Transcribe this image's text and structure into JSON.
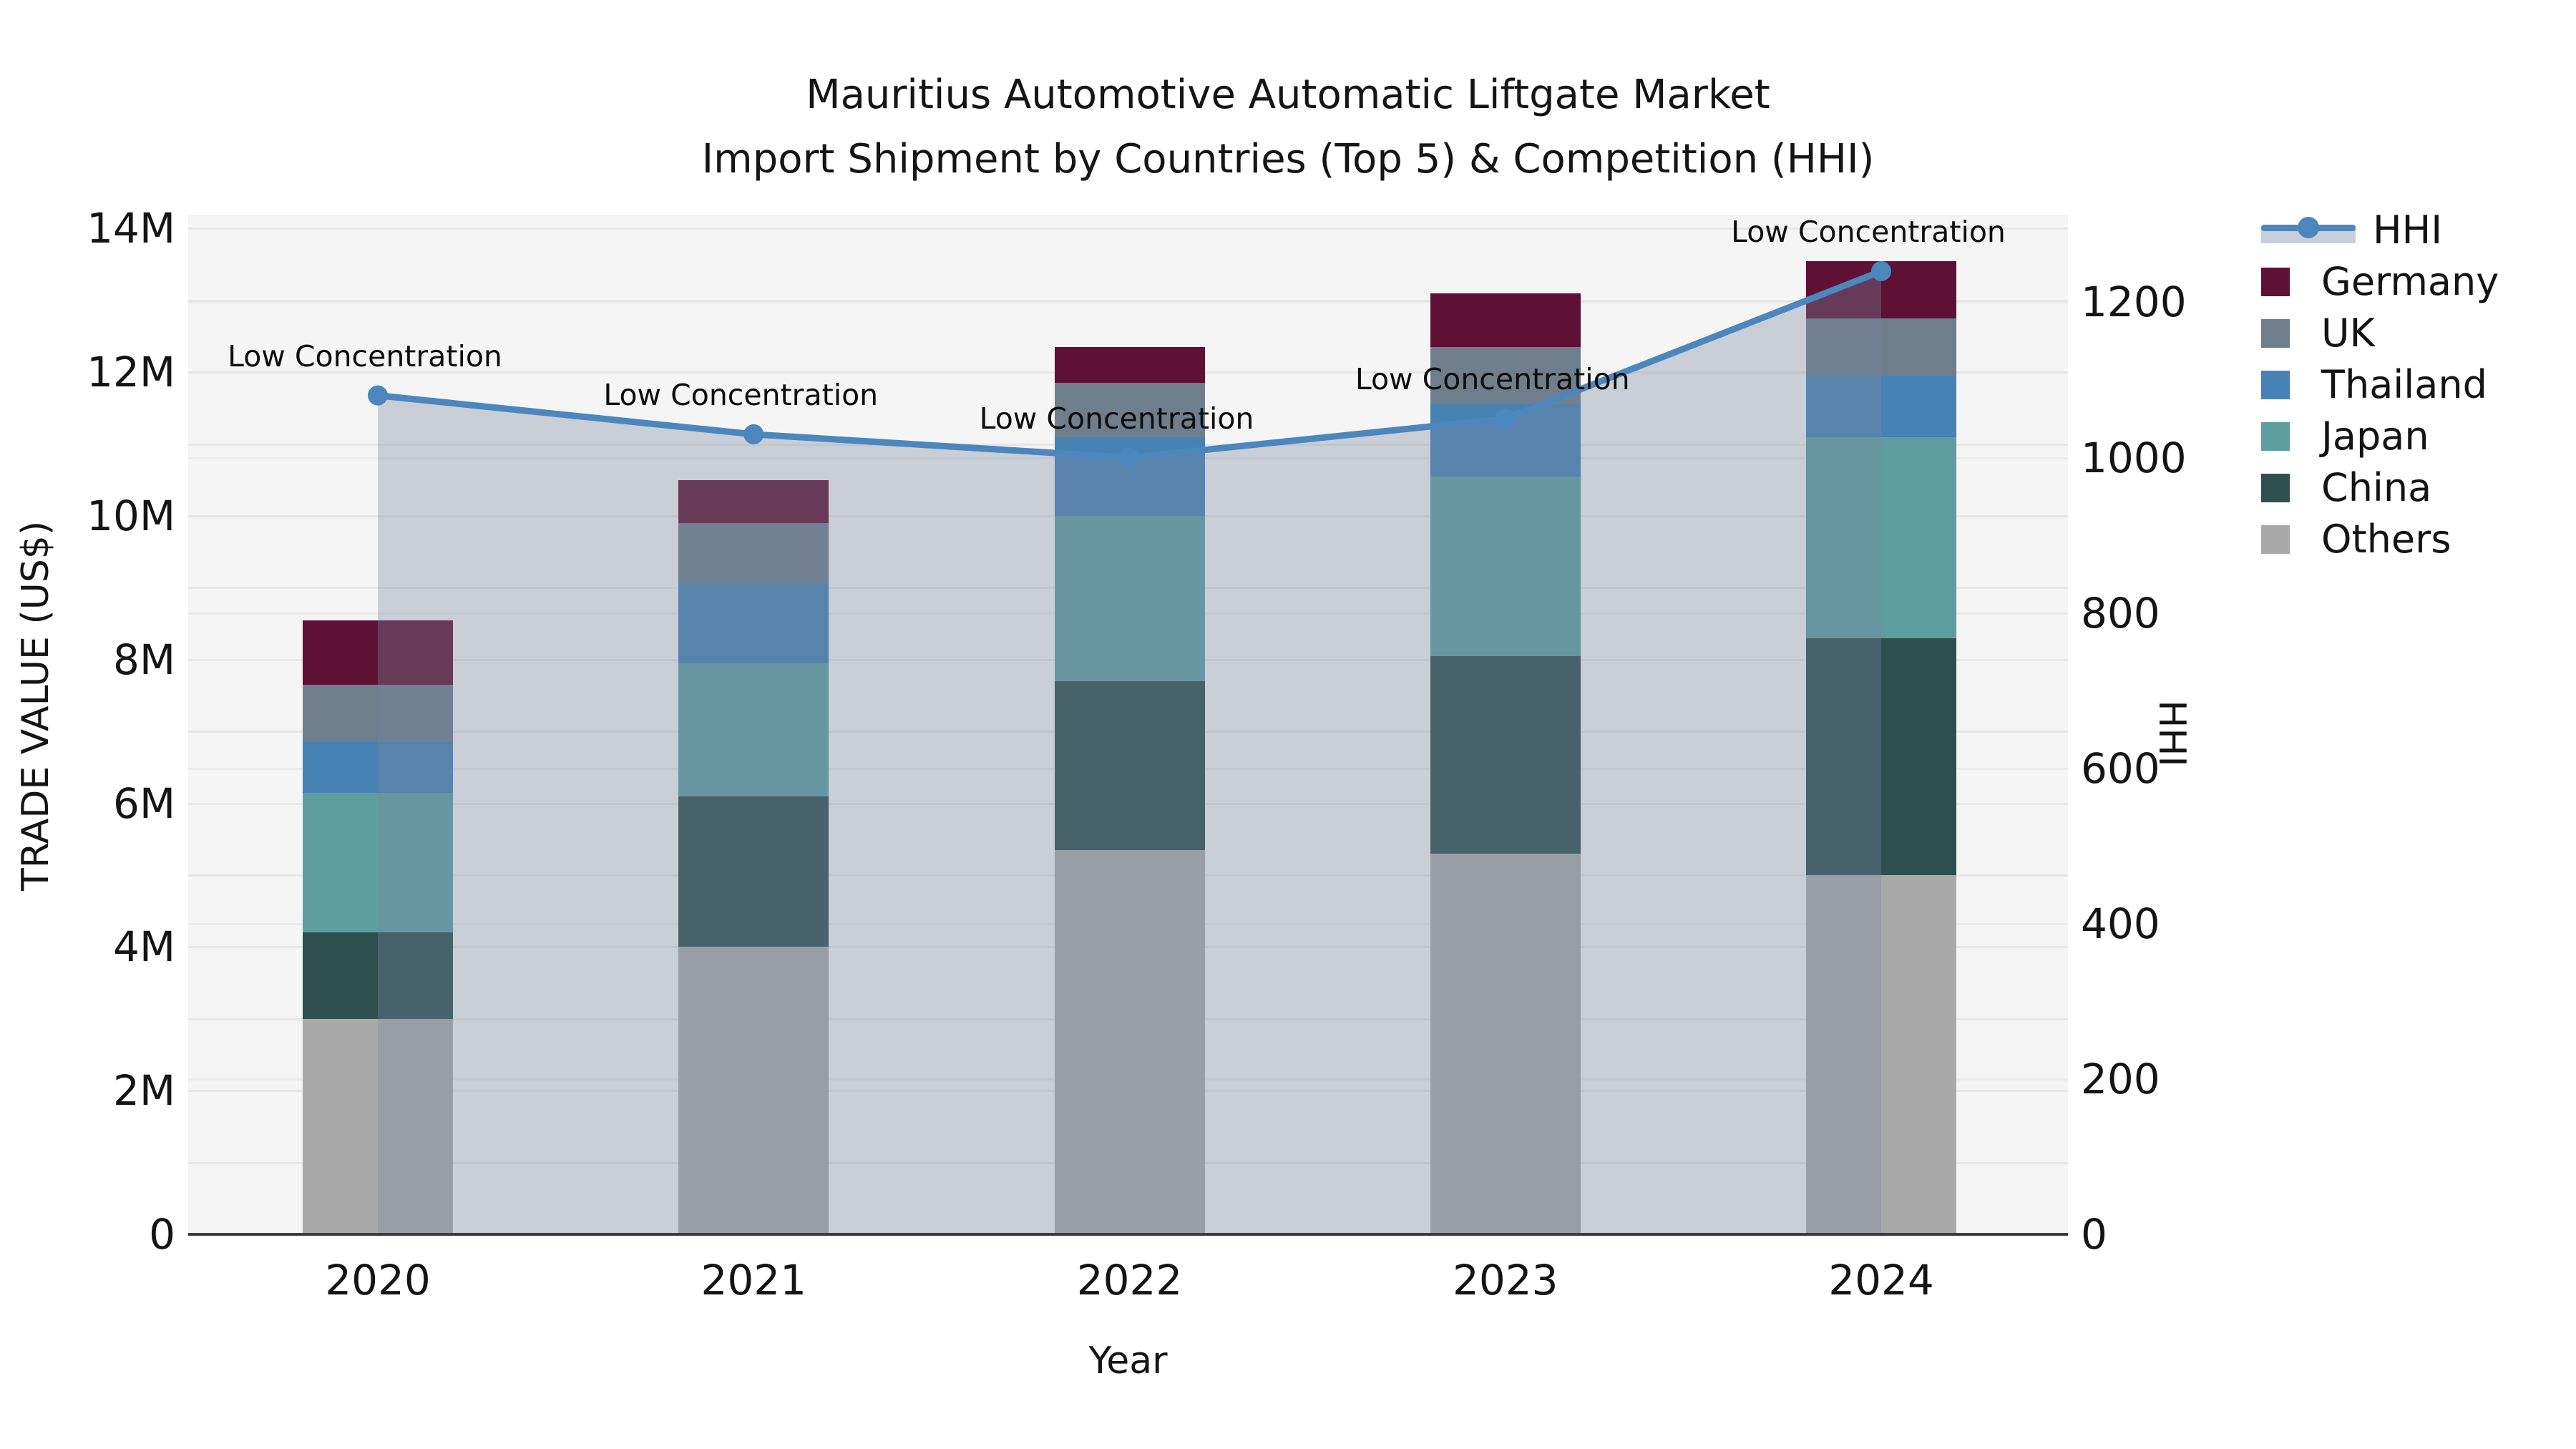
{
  "title": {
    "line1": "Mauritius Automotive Automatic Liftgate Market",
    "line2": "Import Shipment by Countries (Top 5) & Competition (HHI)"
  },
  "chart_data": {
    "type": "combo_stacked_bar_line",
    "title": "Mauritius Automotive Automatic Liftgate Market Import Shipment by Countries (Top 5) & Competition (HHI)",
    "xlabel": "Year",
    "ylabel_left": "TRADE VALUE (US$)",
    "ylabel_right": "HHI",
    "categories": [
      "2020",
      "2021",
      "2022",
      "2023",
      "2024"
    ],
    "bar_unit": "million US$",
    "bar_series": [
      {
        "name": "Others",
        "color": "#A9A9A9",
        "values": [
          3.0,
          4.0,
          5.35,
          5.3,
          5.0
        ]
      },
      {
        "name": "China",
        "color": "#2F4F4F",
        "values": [
          1.2,
          2.1,
          2.35,
          2.75,
          3.3
        ]
      },
      {
        "name": "Japan",
        "color": "#5F9EA0",
        "values": [
          1.95,
          1.85,
          2.3,
          2.5,
          2.8
        ]
      },
      {
        "name": "Thailand",
        "color": "#4682B4",
        "values": [
          0.7,
          1.1,
          1.1,
          1.0,
          0.85
        ]
      },
      {
        "name": "UK",
        "color": "#6E7E8C",
        "values": [
          0.8,
          0.85,
          0.75,
          0.8,
          0.8
        ]
      },
      {
        "name": "Germany",
        "color": "#5E1134",
        "values": [
          0.9,
          0.6,
          0.5,
          0.75,
          0.8
        ]
      }
    ],
    "bar_totals": [
      8.55,
      10.5,
      12.35,
      13.1,
      13.55
    ],
    "line_series": {
      "name": "HHI",
      "color": "#4B86BC",
      "values": [
        1080,
        1030,
        1000,
        1050,
        1240
      ]
    },
    "point_annotations": [
      "Low Concentration",
      "Low Concentration",
      "Low Concentration",
      "Low Concentration",
      "Low Concentration"
    ],
    "left_axis": {
      "ticks": [
        "0",
        "2M",
        "4M",
        "6M",
        "8M",
        "10M",
        "12M",
        "14M"
      ],
      "tick_values": [
        0,
        2,
        4,
        6,
        8,
        10,
        12,
        14
      ],
      "max": 14.19
    },
    "right_axis": {
      "ticks": [
        "0",
        "200",
        "400",
        "600",
        "800",
        "1000",
        "1200"
      ],
      "tick_values": [
        0,
        200,
        400,
        600,
        800,
        1000,
        1200
      ],
      "max": 1313
    },
    "legend_order": [
      "HHI",
      "Germany",
      "UK",
      "Thailand",
      "Japan",
      "China",
      "Others"
    ],
    "grid": true,
    "legend_position": "right",
    "styles": {
      "plot_bg": "#f5f5f5",
      "grid_color": "#e7e7e7",
      "spine_color": "#3c3c3c",
      "area_fill_color": "#7887A0",
      "area_fill_opacity": 0.35,
      "legend_area_swatch": "#c9cfda"
    }
  }
}
